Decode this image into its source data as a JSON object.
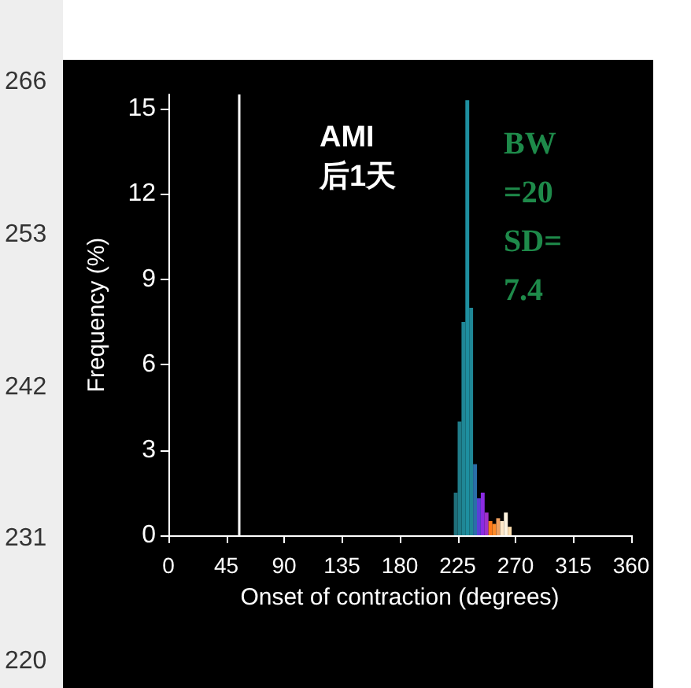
{
  "chart_data": {
    "type": "histogram",
    "xlabel": "Onset of contraction (degrees)",
    "ylabel": "Frequency (%)",
    "bins": [
      222,
      225,
      228,
      231,
      234,
      237,
      240,
      243,
      246,
      249,
      252,
      255,
      258,
      261,
      264,
      267
    ],
    "values": [
      1.5,
      4.0,
      7.5,
      15.3,
      8.0,
      2.5,
      1.3,
      1.5,
      0.8,
      0.5,
      0.4,
      0.6,
      0.5,
      0.8,
      0.3
    ],
    "colors": [
      "#1f6f7a",
      "#1f7d8a",
      "#1f8796",
      "#1e8fa0",
      "#1f8796",
      "#2a6fa8",
      "#5a3fd8",
      "#8a2be2",
      "#a030c8",
      "#ff7a1a",
      "#ff8c2a",
      "#f0a060",
      "#ffe8c8",
      "#fff4e0",
      "#ffe0b0"
    ],
    "xlim": [
      0,
      360
    ],
    "xticks": [
      0,
      45,
      90,
      135,
      180,
      225,
      270,
      315,
      360
    ],
    "ylim": [
      0,
      15.5
    ],
    "yticks": [
      0,
      3,
      6,
      9,
      12,
      15
    ],
    "ref_lines": [
      {
        "axis": "x",
        "value": 55,
        "color": "#ffffff"
      }
    ],
    "grid": false,
    "annotations": [
      "AMI\n后1天",
      "BW\n=20\nSD=\n7.4",
      "266",
      "253",
      "242",
      "231",
      "220"
    ]
  }
}
